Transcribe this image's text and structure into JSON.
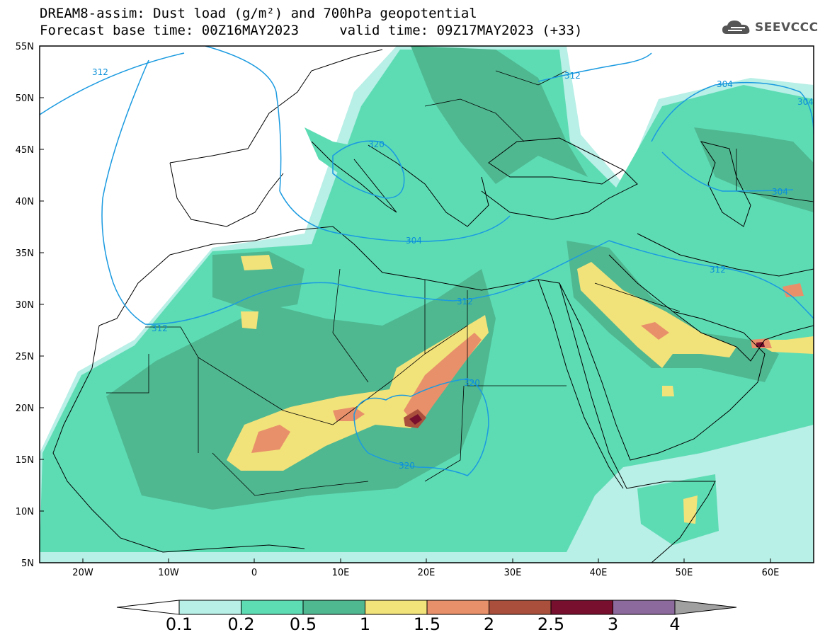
{
  "header": {
    "title_line1": "DREAM8-assim: Dust load (g/m²) and 700hPa geopotential",
    "title_line2": "Forecast base time: 00Z16MAY2023     valid time: 09Z17MAY2023 (+33)",
    "logo_text": "SEEVCCC"
  },
  "map": {
    "lat_labels": [
      "55N",
      "50N",
      "45N",
      "40N",
      "35N",
      "30N",
      "25N",
      "20N",
      "15N",
      "10N",
      "5N"
    ],
    "lon_labels": [
      "20W",
      "10W",
      "0",
      "10E",
      "20E",
      "30E",
      "40E",
      "50E",
      "60E"
    ],
    "contour_labels": [
      "312",
      "312",
      "304",
      "304",
      "304",
      "304",
      "312",
      "312",
      "312",
      "320",
      "320",
      "320"
    ]
  },
  "colorbar": {
    "colors": [
      "#b8efe6",
      "#5ddcb4",
      "#4fb891",
      "#f2e27a",
      "#e8906a",
      "#a94f3c",
      "#780f2e",
      "#8d6a9e"
    ],
    "labels": [
      "0.1",
      "0.2",
      "0.5",
      "1",
      "1.5",
      "2",
      "2.5",
      "3",
      "4"
    ],
    "low_arrow_color": "#ffffff",
    "high_arrow_color": "#a0a0a0"
  }
}
